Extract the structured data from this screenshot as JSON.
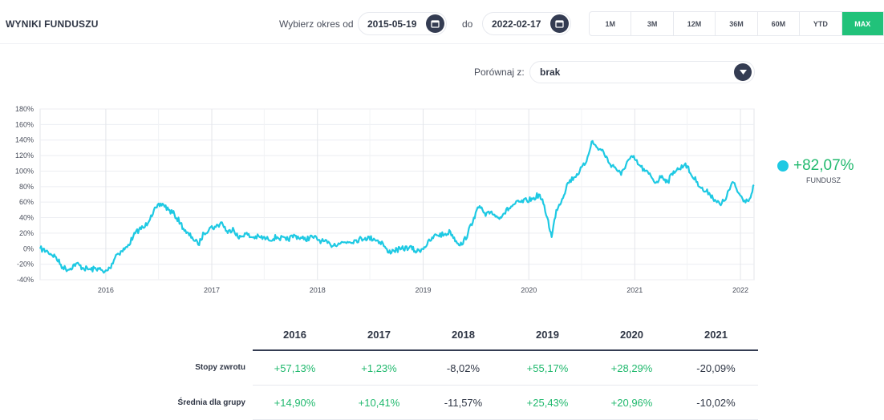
{
  "header": {
    "title": "WYNIKI FUNDUSZU",
    "period_label": "Wybierz okres od",
    "date_from": "2015-05-19",
    "to_label": "do",
    "date_to": "2022-02-17"
  },
  "ranges": [
    {
      "label": "1M",
      "active": false
    },
    {
      "label": "3M",
      "active": false
    },
    {
      "label": "12M",
      "active": false
    },
    {
      "label": "36M",
      "active": false
    },
    {
      "label": "60M",
      "active": false
    },
    {
      "label": "YTD",
      "active": false
    },
    {
      "label": "MAX",
      "active": true
    }
  ],
  "compare": {
    "label": "Porównaj z:",
    "value": "brak"
  },
  "legend": {
    "value": "+82,07%",
    "name": "FUNDUSZ"
  },
  "colors": {
    "line": "#1ec9e3",
    "positive": "#21b96e",
    "accent": "#21c27a",
    "dark": "#343c52"
  },
  "chart_data": {
    "type": "line",
    "y_ticks": [
      "180%",
      "160%",
      "140%",
      "120%",
      "100%",
      "80%",
      "60%",
      "40%",
      "20%",
      "0%",
      "-20%",
      "-40%"
    ],
    "ylim": [
      -40,
      180
    ],
    "x_ticks": [
      "2016",
      "2017",
      "2018",
      "2019",
      "2020",
      "2021",
      "2022"
    ],
    "xlim": [
      "2015-05-19",
      "2022-02-17"
    ],
    "grid": true,
    "series": [
      {
        "name": "FUNDUSZ",
        "points": [
          [
            "2015-05-19",
            0
          ],
          [
            "2015-06-15",
            -4
          ],
          [
            "2015-07-10",
            -10
          ],
          [
            "2015-08-05",
            -24
          ],
          [
            "2015-08-25",
            -27
          ],
          [
            "2015-09-20",
            -19
          ],
          [
            "2015-10-15",
            -25
          ],
          [
            "2015-11-10",
            -27
          ],
          [
            "2015-12-05",
            -25
          ],
          [
            "2015-12-25",
            -31
          ],
          [
            "2016-01-15",
            -25
          ],
          [
            "2016-02-05",
            -8
          ],
          [
            "2016-02-25",
            -3
          ],
          [
            "2016-03-15",
            2
          ],
          [
            "2016-04-05",
            16
          ],
          [
            "2016-04-25",
            25
          ],
          [
            "2016-05-15",
            28
          ],
          [
            "2016-06-05",
            43
          ],
          [
            "2016-06-25",
            53
          ],
          [
            "2016-07-15",
            58
          ],
          [
            "2016-08-05",
            50
          ],
          [
            "2016-08-25",
            44
          ],
          [
            "2016-09-15",
            33
          ],
          [
            "2016-10-05",
            20
          ],
          [
            "2016-10-25",
            15
          ],
          [
            "2016-11-15",
            5
          ],
          [
            "2016-12-05",
            20
          ],
          [
            "2016-12-25",
            27
          ],
          [
            "2017-01-15",
            28
          ],
          [
            "2017-02-05",
            34
          ],
          [
            "2017-02-25",
            20
          ],
          [
            "2017-03-15",
            27
          ],
          [
            "2017-04-05",
            13
          ],
          [
            "2017-04-25",
            20
          ],
          [
            "2017-05-15",
            15
          ],
          [
            "2017-06-15",
            15
          ],
          [
            "2017-07-15",
            12
          ],
          [
            "2017-08-15",
            15
          ],
          [
            "2017-09-15",
            11
          ],
          [
            "2017-10-15",
            17
          ],
          [
            "2017-11-15",
            12
          ],
          [
            "2017-12-15",
            15
          ],
          [
            "2018-01-15",
            10
          ],
          [
            "2018-02-15",
            5
          ],
          [
            "2018-03-15",
            7
          ],
          [
            "2018-04-15",
            9
          ],
          [
            "2018-05-15",
            11
          ],
          [
            "2018-06-15",
            14
          ],
          [
            "2018-07-15",
            13
          ],
          [
            "2018-08-15",
            7
          ],
          [
            "2018-09-01",
            -5
          ],
          [
            "2018-09-20",
            -2
          ],
          [
            "2018-10-15",
            -1
          ],
          [
            "2018-11-15",
            2
          ],
          [
            "2018-12-10",
            -4
          ],
          [
            "2019-01-05",
            2
          ],
          [
            "2019-01-25",
            10
          ],
          [
            "2019-02-15",
            18
          ],
          [
            "2019-03-15",
            18
          ],
          [
            "2019-04-05",
            22
          ],
          [
            "2019-04-25",
            10
          ],
          [
            "2019-05-15",
            5
          ],
          [
            "2019-06-05",
            20
          ],
          [
            "2019-06-25",
            40
          ],
          [
            "2019-07-15",
            55
          ],
          [
            "2019-08-05",
            42
          ],
          [
            "2019-08-25",
            48
          ],
          [
            "2019-09-15",
            40
          ],
          [
            "2019-10-05",
            45
          ],
          [
            "2019-10-25",
            52
          ],
          [
            "2019-11-15",
            58
          ],
          [
            "2019-12-05",
            60
          ],
          [
            "2019-12-25",
            62
          ],
          [
            "2020-01-15",
            64
          ],
          [
            "2020-02-05",
            70
          ],
          [
            "2020-02-20",
            58
          ],
          [
            "2020-03-05",
            40
          ],
          [
            "2020-03-20",
            15
          ],
          [
            "2020-04-05",
            50
          ],
          [
            "2020-04-25",
            64
          ],
          [
            "2020-05-15",
            85
          ],
          [
            "2020-06-05",
            92
          ],
          [
            "2020-06-25",
            100
          ],
          [
            "2020-07-15",
            110
          ],
          [
            "2020-08-05",
            138
          ],
          [
            "2020-08-25",
            130
          ],
          [
            "2020-09-15",
            125
          ],
          [
            "2020-10-05",
            110
          ],
          [
            "2020-10-25",
            105
          ],
          [
            "2020-11-15",
            95
          ],
          [
            "2020-12-05",
            112
          ],
          [
            "2020-12-25",
            118
          ],
          [
            "2021-01-15",
            108
          ],
          [
            "2021-02-05",
            100
          ],
          [
            "2021-02-25",
            94
          ],
          [
            "2021-03-15",
            85
          ],
          [
            "2021-04-05",
            94
          ],
          [
            "2021-04-25",
            86
          ],
          [
            "2021-05-15",
            100
          ],
          [
            "2021-06-05",
            103
          ],
          [
            "2021-06-25",
            110
          ],
          [
            "2021-07-15",
            95
          ],
          [
            "2021-08-05",
            86
          ],
          [
            "2021-08-25",
            75
          ],
          [
            "2021-09-15",
            72
          ],
          [
            "2021-10-05",
            63
          ],
          [
            "2021-10-25",
            56
          ],
          [
            "2021-11-15",
            68
          ],
          [
            "2021-12-05",
            86
          ],
          [
            "2021-12-25",
            72
          ],
          [
            "2022-01-15",
            62
          ],
          [
            "2022-02-05",
            66
          ],
          [
            "2022-02-17",
            82
          ]
        ]
      }
    ]
  },
  "returns_table": {
    "years": [
      "2016",
      "2017",
      "2018",
      "2019",
      "2020",
      "2021"
    ],
    "rows": [
      {
        "label": "Stopy zwrotu",
        "values": [
          "+57,13%",
          "+1,23%",
          "-8,02%",
          "+55,17%",
          "+28,29%",
          "-20,09%"
        ]
      },
      {
        "label": "Średnia dla grupy",
        "values": [
          "+14,90%",
          "+10,41%",
          "-11,57%",
          "+25,43%",
          "+20,96%",
          "-10,02%"
        ]
      }
    ]
  }
}
